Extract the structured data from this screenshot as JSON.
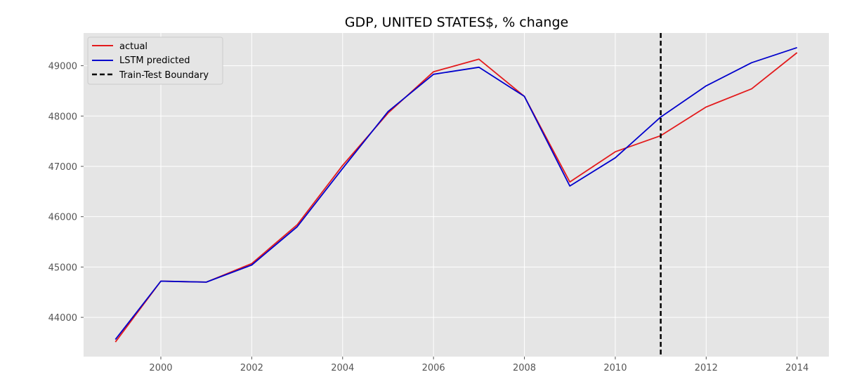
{
  "chart_data": {
    "type": "line",
    "title": "GDP, UNITED STATES$, % change",
    "xlabel": "",
    "ylabel": "",
    "xlim": [
      1998.3,
      2014.7
    ],
    "ylim": [
      43220,
      49650
    ],
    "xticks": [
      2000,
      2002,
      2004,
      2006,
      2008,
      2010,
      2012,
      2014
    ],
    "yticks": [
      44000,
      45000,
      46000,
      47000,
      48000,
      49000
    ],
    "grid": true,
    "legend_position": "top-left",
    "x": [
      1999,
      2000,
      2001,
      2002,
      2003,
      2004,
      2005,
      2006,
      2007,
      2008,
      2009,
      2010,
      2011,
      2012,
      2013,
      2014
    ],
    "series": [
      {
        "name": "actual",
        "color": "#e31a1c",
        "values": [
          43510,
          44720,
          44700,
          45070,
          45840,
          47020,
          48060,
          48880,
          49130,
          48390,
          46690,
          47290,
          47610,
          48180,
          48540,
          49260
        ]
      },
      {
        "name": "LSTM predicted",
        "color": "#0000cc",
        "values": [
          43560,
          44720,
          44700,
          45040,
          45800,
          46960,
          48090,
          48830,
          48970,
          48390,
          46610,
          47170,
          47980,
          48600,
          49060,
          49360
        ]
      }
    ],
    "boundary": {
      "name": "Train-Test Boundary",
      "x": 2011,
      "style": "dashed",
      "color": "#000000"
    },
    "plot_background": "#e5e5e5",
    "grid_color": "#ffffff"
  }
}
